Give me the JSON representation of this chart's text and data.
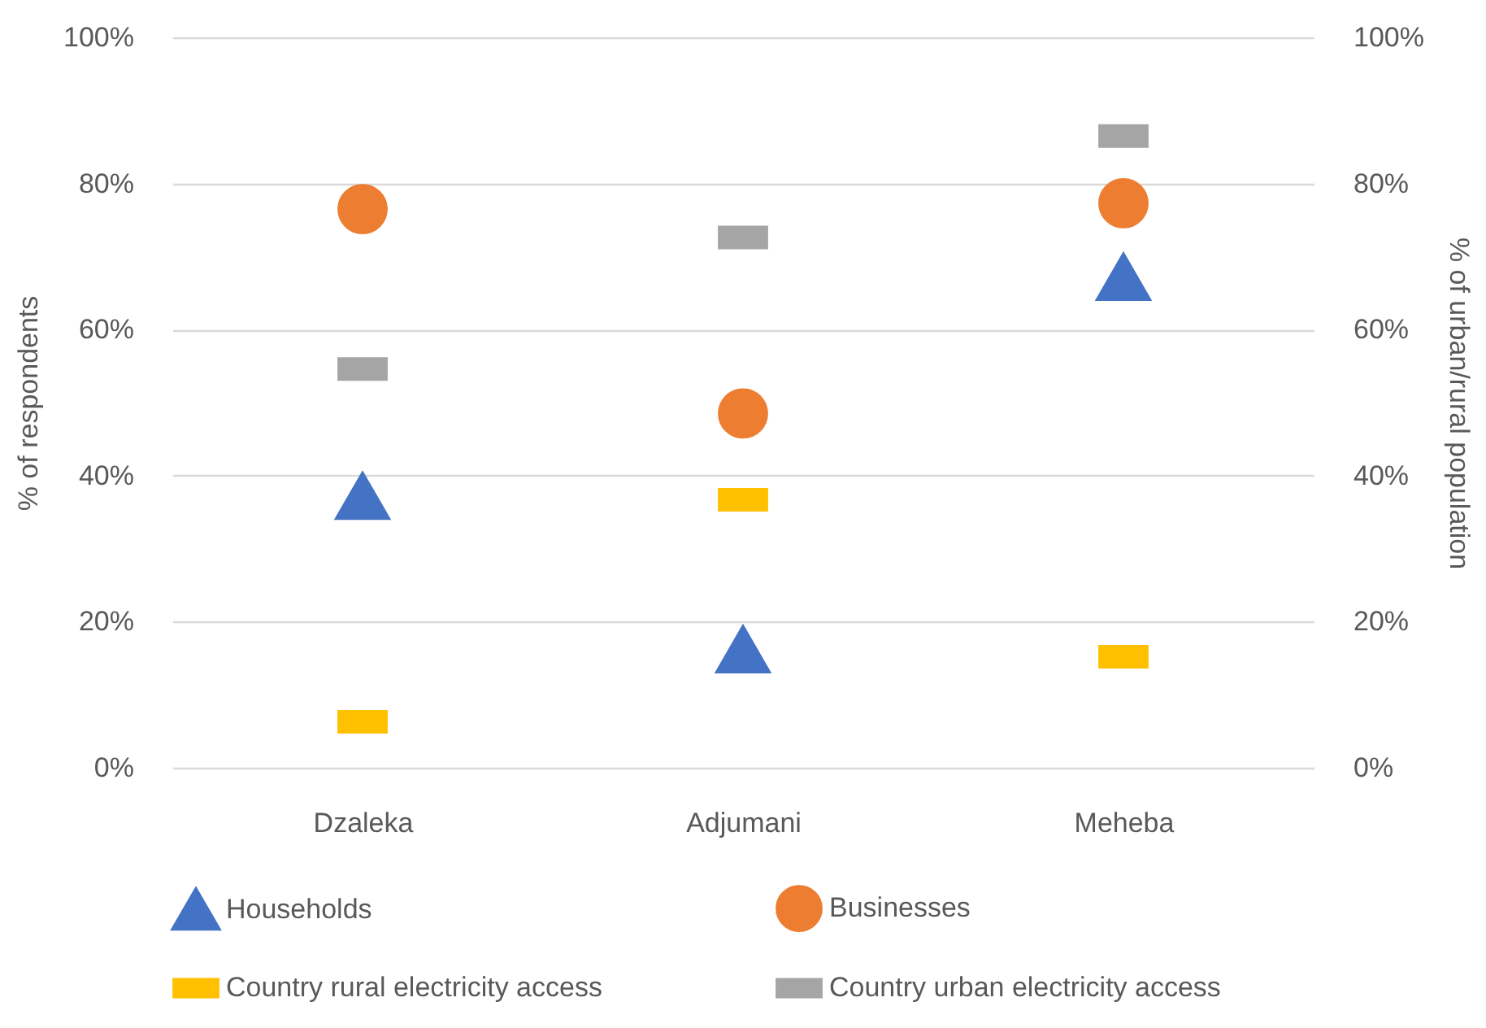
{
  "chart_data": {
    "type": "scatter",
    "categories": [
      "Dzaleka",
      "Adjumani",
      "Meheba"
    ],
    "ylabel": "% of respondents",
    "y2label": "% of urban/rural population",
    "ylim": [
      0,
      100
    ],
    "yticks": [
      {
        "value": 0,
        "label": "0%"
      },
      {
        "value": 20,
        "label": "20%"
      },
      {
        "value": 40,
        "label": "40%"
      },
      {
        "value": 60,
        "label": "60%"
      },
      {
        "value": 80,
        "label": "80%"
      },
      {
        "value": 100,
        "label": "100%"
      }
    ],
    "y2lim": [
      0,
      100
    ],
    "y2ticks": [
      {
        "value": 0,
        "label": "0%"
      },
      {
        "value": 20,
        "label": "20%"
      },
      {
        "value": 40,
        "label": "40%"
      },
      {
        "value": 60,
        "label": "60%"
      },
      {
        "value": 80,
        "label": "80%"
      },
      {
        "value": 100,
        "label": "100%"
      }
    ],
    "grid": "y",
    "legend": "bottom",
    "series": [
      {
        "name": "Households",
        "color": "#4472c4",
        "marker": "triangle",
        "values": [
          37,
          16,
          67
        ]
      },
      {
        "name": "Businesses",
        "color": "#ed7d31",
        "marker": "circle",
        "values": [
          76.5,
          48.5,
          77.3
        ]
      },
      {
        "name": "Country rural electricity access",
        "color": "#ffc000",
        "marker": "square",
        "axis": "y2",
        "values": [
          6.3,
          36.7,
          15.2
        ]
      },
      {
        "name": "Country urban electricity access",
        "color": "#a5a5a5",
        "marker": "square",
        "axis": "y2",
        "values": [
          54.6,
          72.6,
          86.5
        ]
      }
    ]
  }
}
